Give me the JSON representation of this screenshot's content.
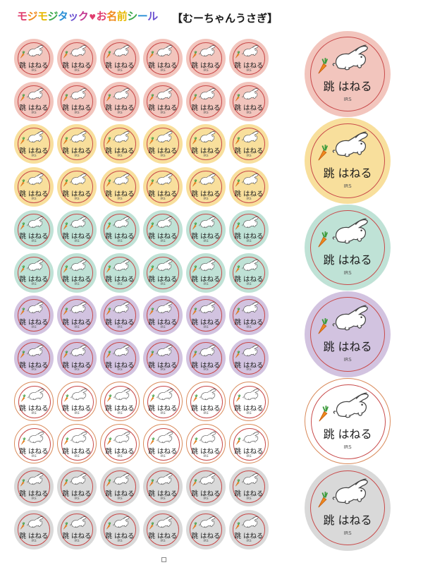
{
  "header": {
    "brand_segments": [
      {
        "text": "モ",
        "color": "#e03d6e"
      },
      {
        "text": "ジ",
        "color": "#f08a1c"
      },
      {
        "text": "モ",
        "color": "#e6b800"
      },
      {
        "text": "ジ",
        "color": "#3aa84a"
      },
      {
        "text": "タ",
        "color": "#2a8fd6"
      },
      {
        "text": "ッ",
        "color": "#6a4fd0"
      },
      {
        "text": "ク",
        "color": "#c2338f"
      },
      {
        "text": "お",
        "color": "#e03d6e"
      },
      {
        "text": "名",
        "color": "#f08a1c"
      },
      {
        "text": "前",
        "color": "#e6b800"
      },
      {
        "text": "シ",
        "color": "#3aa84a"
      },
      {
        "text": "ー",
        "color": "#2a8fd6"
      },
      {
        "text": "ル",
        "color": "#6a4fd0"
      }
    ],
    "brand_heart": "♥",
    "sheet_title": "【むーちゃんうさぎ】"
  },
  "sticker": {
    "name": "跳 はねる",
    "small_text": "IRS",
    "icons": [
      "rabbit-icon",
      "carrot-icon"
    ]
  },
  "colors": {
    "ring": "#c84a4a",
    "rows": [
      "#f2c5bd",
      "#f2c5bd",
      "#f8df9c",
      "#f8df9c",
      "#bfe2d6",
      "#bfe2d6",
      "#d2c3e0",
      "#d2c3e0",
      "#ffffff",
      "#ffffff",
      "#d9d9d9",
      "#d9d9d9"
    ],
    "large": [
      "#f2c5bd",
      "#f8df9c",
      "#bfe2d6",
      "#d2c3e0",
      "#ffffff",
      "#d9d9d9"
    ]
  },
  "grid": {
    "rows": 12,
    "columns": 6
  }
}
